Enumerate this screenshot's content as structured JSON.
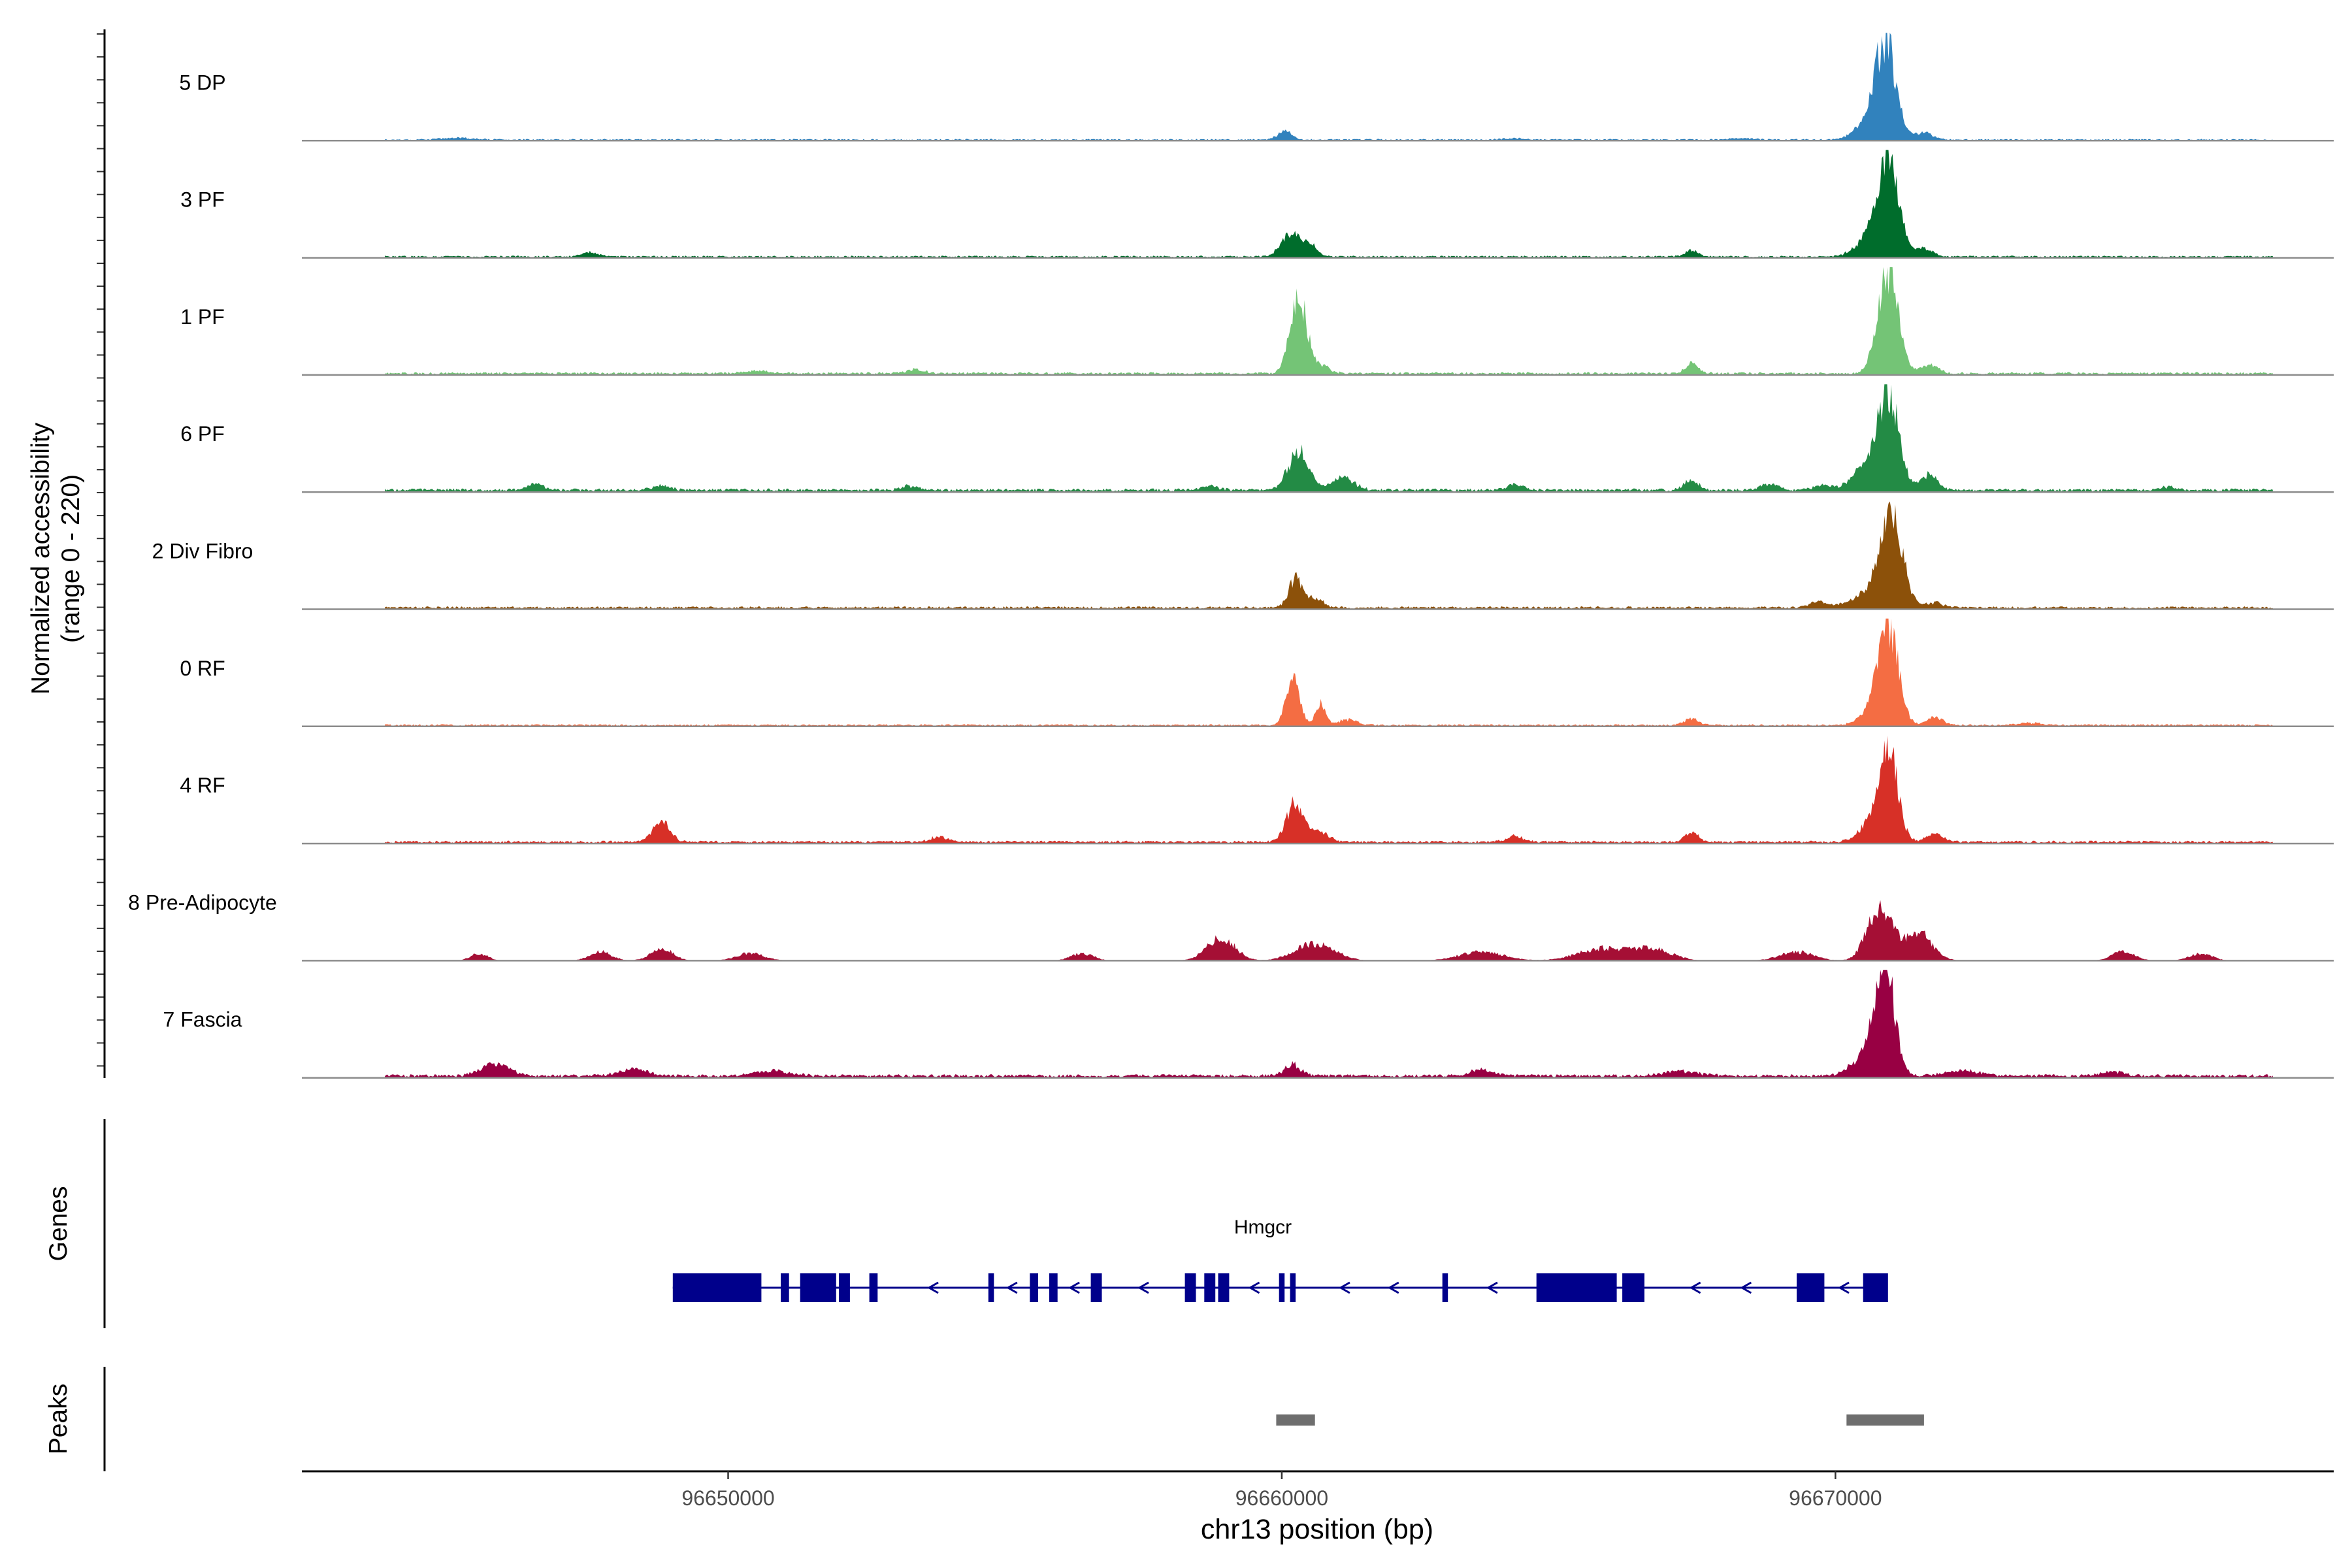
{
  "chart_data": {
    "type": "area",
    "title": "",
    "ylabel": [
      "Normalized accessibility",
      "(range 0 - 220)"
    ],
    "xlabel": "chr13 position (bp)",
    "xlim": [
      96642300,
      96679000
    ],
    "ylim": [
      0,
      220
    ],
    "x_ticks": [
      96650000,
      96660000,
      96670000
    ],
    "x_tick_labels": [
      "96650000",
      "96660000",
      "96670000"
    ],
    "tracks": [
      {
        "name": "5 DP",
        "color": "#3182BD",
        "baseline": 2.5,
        "peaks": [
          [
            96645100,
            4,
            250
          ],
          [
            96660050,
            18,
            120
          ],
          [
            96664200,
            3,
            200
          ],
          [
            96668300,
            3,
            200
          ],
          [
            96670900,
            200,
            190
          ],
          [
            96670500,
            25,
            200
          ],
          [
            96671600,
            14,
            150
          ]
        ]
      },
      {
        "name": "3 PF",
        "color": "#006D2C",
        "baseline": 3,
        "peaks": [
          [
            96647500,
            9,
            150
          ],
          [
            96660150,
            48,
            160
          ],
          [
            96660500,
            25,
            130
          ],
          [
            96667400,
            15,
            110
          ],
          [
            96670950,
            195,
            190
          ],
          [
            96670550,
            30,
            220
          ],
          [
            96671600,
            16,
            160
          ]
        ]
      },
      {
        "name": "1 PF",
        "color": "#74C476",
        "baseline": 4,
        "peaks": [
          [
            96650500,
            5,
            250
          ],
          [
            96653400,
            8,
            150
          ],
          [
            96660300,
            155,
            150
          ],
          [
            96660700,
            15,
            150
          ],
          [
            96667400,
            18,
            120
          ],
          [
            96670950,
            210,
            180
          ],
          [
            96671700,
            20,
            140
          ]
        ]
      },
      {
        "name": "6 PF",
        "color": "#238B45",
        "baseline": 5,
        "peaks": [
          [
            96646500,
            12,
            150
          ],
          [
            96648800,
            10,
            150
          ],
          [
            96653300,
            8,
            150
          ],
          [
            96658700,
            8,
            150
          ],
          [
            96660300,
            80,
            180
          ],
          [
            96661100,
            25,
            200
          ],
          [
            96664200,
            10,
            150
          ],
          [
            96667400,
            22,
            120
          ],
          [
            96668800,
            12,
            150
          ],
          [
            96669800,
            10,
            150
          ],
          [
            96670950,
            200,
            190
          ],
          [
            96670500,
            40,
            220
          ],
          [
            96671700,
            30,
            150
          ],
          [
            96676000,
            6,
            150
          ]
        ]
      },
      {
        "name": "2 Div Fibro",
        "color": "#8C510A",
        "baseline": 4,
        "peaks": [
          [
            96660250,
            58,
            120
          ],
          [
            96660600,
            18,
            150
          ],
          [
            96669700,
            12,
            150
          ],
          [
            96671000,
            200,
            200
          ],
          [
            96670500,
            25,
            250
          ],
          [
            96671800,
            10,
            150
          ]
        ]
      },
      {
        "name": "0 RF",
        "color": "#F46D43",
        "baseline": 3,
        "peaks": [
          [
            96660200,
            90,
            120
          ],
          [
            96660700,
            42,
            90
          ],
          [
            96661200,
            12,
            150
          ],
          [
            96667400,
            14,
            120
          ],
          [
            96670950,
            205,
            180
          ],
          [
            96670600,
            20,
            200
          ],
          [
            96671800,
            15,
            150
          ],
          [
            96673500,
            5,
            200
          ]
        ]
      },
      {
        "name": "4 RF",
        "color": "#D73027",
        "baseline": 4,
        "peaks": [
          [
            96648800,
            45,
            150
          ],
          [
            96653800,
            10,
            150
          ],
          [
            96660250,
            80,
            160
          ],
          [
            96660700,
            20,
            150
          ],
          [
            96664200,
            12,
            150
          ],
          [
            96667400,
            18,
            120
          ],
          [
            96670950,
            195,
            170
          ],
          [
            96670600,
            30,
            200
          ],
          [
            96671800,
            16,
            150
          ]
        ]
      },
      {
        "name": "8 Pre-Adipocyte",
        "color": "#A50F35",
        "baseline": 0,
        "peaks": [
          [
            96645500,
            15,
            150
          ],
          [
            96647700,
            18,
            200
          ],
          [
            96648800,
            25,
            200
          ],
          [
            96650400,
            15,
            250
          ],
          [
            96656400,
            15,
            200
          ],
          [
            96658900,
            48,
            250
          ],
          [
            96660600,
            35,
            350
          ],
          [
            96663600,
            18,
            400
          ],
          [
            96665800,
            25,
            450
          ],
          [
            96666700,
            22,
            350
          ],
          [
            96669300,
            18,
            300
          ],
          [
            96670800,
            110,
            220
          ],
          [
            96671500,
            55,
            250
          ],
          [
            96675200,
            20,
            200
          ],
          [
            96676600,
            15,
            200
          ]
        ]
      },
      {
        "name": "7 Fascia",
        "color": "#980043",
        "baseline": 5,
        "peaks": [
          [
            96645800,
            24,
            250
          ],
          [
            96648300,
            14,
            250
          ],
          [
            96650800,
            10,
            300
          ],
          [
            96660200,
            22,
            150
          ],
          [
            96663600,
            12,
            200
          ],
          [
            96667200,
            10,
            300
          ],
          [
            96670900,
            210,
            170
          ],
          [
            96670600,
            50,
            250
          ],
          [
            96672300,
            10,
            300
          ],
          [
            96675000,
            8,
            200
          ]
        ]
      }
    ],
    "genes": {
      "label": "Genes",
      "name": "Hmgcr",
      "strand": "-",
      "color": "#00008B",
      "start": 96649000,
      "end": 96670900,
      "exons": [
        [
          96649000,
          96650600
        ],
        [
          96650950,
          96651100
        ],
        [
          96651300,
          96651950
        ],
        [
          96652000,
          96652200
        ],
        [
          96652550,
          96652700
        ],
        [
          96654700,
          96654800
        ],
        [
          96655450,
          96655600
        ],
        [
          96655800,
          96655950
        ],
        [
          96656550,
          96656750
        ],
        [
          96658250,
          96658450
        ],
        [
          96658600,
          96658800
        ],
        [
          96658850,
          96659050
        ],
        [
          96659950,
          96660050
        ],
        [
          96660150,
          96660250
        ],
        [
          96662900,
          96663000
        ],
        [
          96664600,
          96666050
        ],
        [
          96666150,
          96666550
        ],
        [
          96669300,
          96669800
        ],
        [
          96670500,
          96670950
        ]
      ]
    },
    "peaks_track": {
      "label": "Peaks",
      "color": "#6E6E6E",
      "regions": [
        [
          96659900,
          96660600
        ],
        [
          96670200,
          96671600
        ]
      ]
    }
  }
}
